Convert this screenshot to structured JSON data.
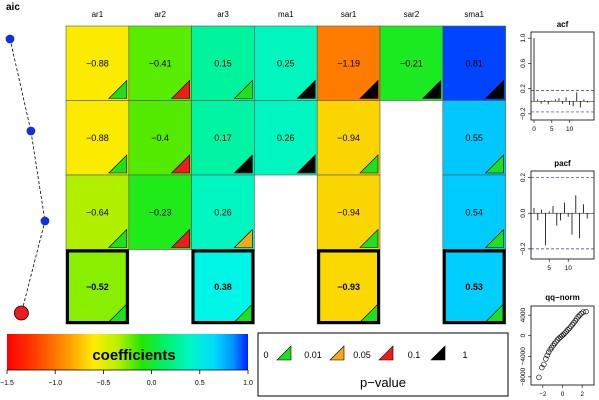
{
  "aic_panel": {
    "title": "aic",
    "points": [
      {
        "row": 0,
        "marker": "blue"
      },
      {
        "row": 1,
        "marker": "blue"
      },
      {
        "row": 2,
        "marker": "blue"
      },
      {
        "row": 3,
        "marker": "red-large"
      }
    ],
    "offsets": [
      0.0,
      0.55,
      0.92,
      0.3
    ]
  },
  "chart_data": {
    "type": "heatmap",
    "title": "",
    "columns": [
      "ar1",
      "ar2",
      "ar3",
      "ma1",
      "sar1",
      "sar2",
      "sma1"
    ],
    "rows": [
      [
        -0.88,
        -0.41,
        0.15,
        0.25,
        -1.19,
        -0.21,
        0.81
      ],
      [
        -0.88,
        -0.4,
        0.17,
        0.26,
        -0.94,
        null,
        0.55
      ],
      [
        -0.64,
        -0.23,
        0.26,
        null,
        -0.94,
        null,
        0.54
      ],
      [
        -0.52,
        null,
        0.38,
        null,
        -0.93,
        null,
        0.53
      ]
    ],
    "labels": [
      [
        "−0.88",
        "−0.41",
        "0.15",
        "0.25",
        "−1.19",
        "−0.21",
        "0.81"
      ],
      [
        "−0.88",
        "−0.4",
        "0.17",
        "0.26",
        "−0.94",
        "",
        "0.55"
      ],
      [
        "−0.64",
        "−0.23",
        "0.26",
        "",
        "−0.94",
        "",
        "0.54"
      ],
      [
        "−0.52",
        "",
        "0.38",
        "",
        "−0.93",
        "",
        "0.53"
      ]
    ],
    "pvalue_marks": [
      [
        "green",
        "red",
        "green",
        "black",
        "black",
        "black",
        "black"
      ],
      [
        "green",
        "red",
        "black",
        "black",
        "green",
        null,
        "green"
      ],
      [
        "green",
        "red",
        "orange",
        null,
        "green",
        null,
        "green"
      ],
      [
        "green",
        null,
        "green",
        null,
        "green",
        null,
        "green"
      ]
    ],
    "highlighted_row": 3,
    "colorbar": {
      "title": "coefficients",
      "range": [
        -1.5,
        1.0
      ],
      "ticks": [
        "−1.5",
        "−1.0",
        "−0.5",
        "0.0",
        "0.5",
        "1.0"
      ]
    },
    "pvalue_legend": {
      "title": "p−value",
      "labels": [
        "0",
        "0.01",
        "0.05",
        "0.1",
        "1"
      ],
      "colors": [
        "#1fe01f",
        "#f5a81c",
        "#ee1d1d",
        "#000000"
      ]
    },
    "side_plots": [
      {
        "title": "acf",
        "yticks": [
          "1.0",
          "0.6",
          "0.2",
          "−0.2"
        ],
        "xticks": [
          "0",
          "5",
          "10"
        ],
        "ylim": [
          -0.25,
          1.05
        ],
        "xlim": [
          0,
          16
        ],
        "ci": 0.17,
        "lags": [
          0,
          1,
          2,
          3,
          4,
          5,
          6,
          7,
          8,
          9,
          10,
          11,
          12,
          13,
          14,
          15
        ],
        "values": [
          1.0,
          0.03,
          -0.04,
          0.02,
          -0.05,
          0.01,
          0.03,
          0.05,
          -0.04,
          0.06,
          -0.06,
          -0.08,
          0.14,
          -0.1,
          0.03,
          -0.02
        ]
      },
      {
        "title": "pacf",
        "yticks": [
          "0.2",
          "0.0",
          "−0.2"
        ],
        "xticks": [
          "5",
          "10"
        ],
        "ylim": [
          -0.24,
          0.22
        ],
        "xlim": [
          1,
          16
        ],
        "ci": 0.2,
        "lags": [
          1,
          2,
          3,
          4,
          5,
          6,
          7,
          8,
          9,
          10,
          11,
          12,
          13,
          14,
          15
        ],
        "values": [
          0.03,
          -0.04,
          0.02,
          -0.18,
          0.01,
          0.04,
          -0.07,
          -0.04,
          0.06,
          -0.02,
          -0.12,
          0.1,
          -0.14,
          0.05,
          -0.03
        ]
      },
      {
        "title": "qq−norm",
        "yticks": [
          "4000",
          "0",
          "−4000",
          "−8000"
        ],
        "xticks": [
          "−2",
          "0",
          "2"
        ],
        "ylim": [
          -9000,
          5200
        ],
        "xlim": [
          -2.9,
          2.9
        ],
        "x": [
          -2.4,
          -2.1,
          -1.9,
          -1.7,
          -1.55,
          -1.4,
          -1.25,
          -1.1,
          -0.95,
          -0.8,
          -0.65,
          -0.5,
          -0.35,
          -0.2,
          -0.05,
          0.1,
          0.25,
          0.4,
          0.55,
          0.7,
          0.85,
          1.0,
          1.15,
          1.3,
          1.45,
          1.6,
          1.75,
          1.9,
          2.1,
          2.4
        ],
        "y": [
          -8100,
          -6200,
          -5600,
          -4500,
          -3800,
          -3200,
          -2700,
          -2300,
          -1900,
          -1500,
          -1150,
          -800,
          -500,
          -250,
          0,
          250,
          550,
          850,
          1150,
          1450,
          1800,
          2150,
          2500,
          2900,
          3300,
          3700,
          4000,
          4300,
          4600,
          4700
        ]
      }
    ]
  }
}
